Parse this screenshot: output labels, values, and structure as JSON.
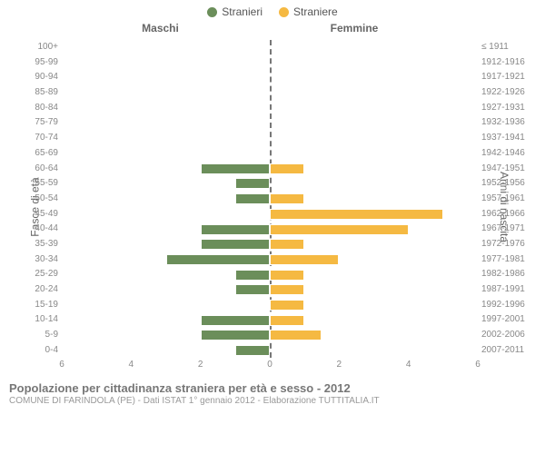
{
  "legend": {
    "male": {
      "label": "Stranieri",
      "color": "#6b8e5a"
    },
    "female": {
      "label": "Straniere",
      "color": "#f5b942"
    }
  },
  "headers": {
    "male": "Maschi",
    "female": "Femmine"
  },
  "axis_labels": {
    "left": "Fasce di età",
    "right": "Anni di nascita"
  },
  "chart": {
    "type": "bar-pyramid",
    "x_max": 6,
    "x_ticks": [
      6,
      4,
      2,
      0,
      2,
      4,
      6
    ],
    "bar_border_color": "#ffffff",
    "background_color": "#ffffff",
    "rows": [
      {
        "age": "100+",
        "birth": "≤ 1911",
        "m": 0,
        "f": 0
      },
      {
        "age": "95-99",
        "birth": "1912-1916",
        "m": 0,
        "f": 0
      },
      {
        "age": "90-94",
        "birth": "1917-1921",
        "m": 0,
        "f": 0
      },
      {
        "age": "85-89",
        "birth": "1922-1926",
        "m": 0,
        "f": 0
      },
      {
        "age": "80-84",
        "birth": "1927-1931",
        "m": 0,
        "f": 0
      },
      {
        "age": "75-79",
        "birth": "1932-1936",
        "m": 0,
        "f": 0
      },
      {
        "age": "70-74",
        "birth": "1937-1941",
        "m": 0,
        "f": 0
      },
      {
        "age": "65-69",
        "birth": "1942-1946",
        "m": 0,
        "f": 0
      },
      {
        "age": "60-64",
        "birth": "1947-1951",
        "m": 2,
        "f": 1
      },
      {
        "age": "55-59",
        "birth": "1952-1956",
        "m": 1,
        "f": 0
      },
      {
        "age": "50-54",
        "birth": "1957-1961",
        "m": 1,
        "f": 1
      },
      {
        "age": "45-49",
        "birth": "1962-1966",
        "m": 0,
        "f": 5
      },
      {
        "age": "40-44",
        "birth": "1967-1971",
        "m": 2,
        "f": 4
      },
      {
        "age": "35-39",
        "birth": "1972-1976",
        "m": 2,
        "f": 1
      },
      {
        "age": "30-34",
        "birth": "1977-1981",
        "m": 3,
        "f": 2
      },
      {
        "age": "25-29",
        "birth": "1982-1986",
        "m": 1,
        "f": 1
      },
      {
        "age": "20-24",
        "birth": "1987-1991",
        "m": 1,
        "f": 1
      },
      {
        "age": "15-19",
        "birth": "1992-1996",
        "m": 0,
        "f": 1
      },
      {
        "age": "10-14",
        "birth": "1997-2001",
        "m": 2,
        "f": 1
      },
      {
        "age": "5-9",
        "birth": "2002-2006",
        "m": 2,
        "f": 1.5
      },
      {
        "age": "0-4",
        "birth": "2007-2011",
        "m": 1,
        "f": 0
      }
    ]
  },
  "footer": {
    "title": "Popolazione per cittadinanza straniera per età e sesso - 2012",
    "subtitle": "COMUNE DI FARINDOLA (PE) - Dati ISTAT 1° gennaio 2012 - Elaborazione TUTTITALIA.IT"
  }
}
